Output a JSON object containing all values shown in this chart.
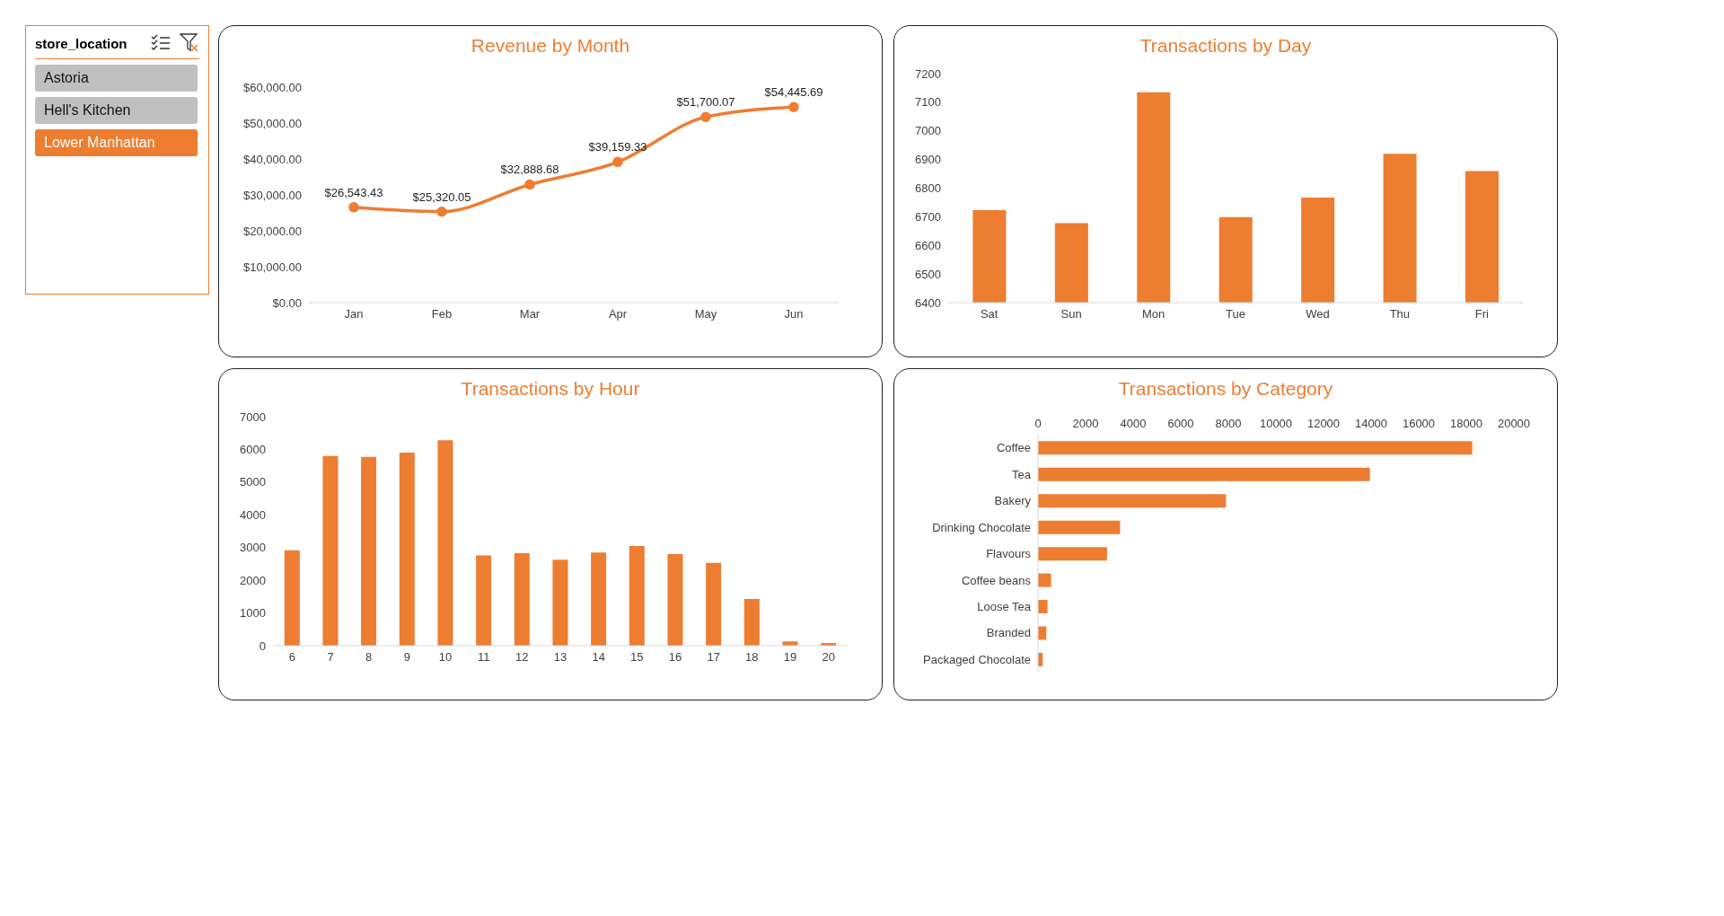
{
  "chart_data": [
    {
      "type": "other",
      "title": "store_location",
      "categories": [
        "Astoria",
        "Hell's Kitchen",
        "Lower Manhattan"
      ],
      "colors": [
        "#c0c0c0",
        "#c0c0c0",
        "#ed7d31"
      ]
    },
    {
      "type": "line",
      "title": "Revenue by Month",
      "categories": [
        "Jan",
        "Feb",
        "Mar",
        "Apr",
        "May",
        "Jun"
      ],
      "marker": "circle",
      "series": [
        {
          "color": "#ed7d31",
          "values": [
            26543.43,
            25320.05,
            32888.68,
            39159.33,
            51700.07,
            54445.69
          ],
          "value_labels": [
            "$26,543.43",
            "$25,320.05",
            "$32,888.68",
            "$39,159.33",
            "$51,700.07",
            "$54,445.69"
          ]
        }
      ],
      "ylim": [
        0,
        60000
      ],
      "yticks": [
        {
          "value": 0,
          "label": "$0.00"
        },
        {
          "value": 10000,
          "label": "$10,000.00"
        },
        {
          "value": 20000,
          "label": "$20,000.00"
        },
        {
          "value": 30000,
          "label": "$30,000.00"
        },
        {
          "value": 40000,
          "label": "$40,000.00"
        },
        {
          "value": 50000,
          "label": "$50,000.00"
        },
        {
          "value": 60000,
          "label": "$60,000.00"
        }
      ]
    },
    {
      "type": "bar",
      "title": "Transactions by Day",
      "categories": [
        "Sat",
        "Sun",
        "Mon",
        "Tue",
        "Wed",
        "Thu",
        "Fri"
      ],
      "values": [
        6723,
        6678,
        7135,
        6699,
        6767,
        6920,
        6860
      ],
      "color": "#ed7d31",
      "ylim": [
        6400,
        7200
      ],
      "yticks": [
        6400,
        6500,
        6600,
        6700,
        6800,
        6900,
        7000,
        7100,
        7200
      ]
    },
    {
      "type": "bar",
      "title": "Transactions by Hour",
      "categories": [
        "6",
        "7",
        "8",
        "9",
        "10",
        "11",
        "12",
        "13",
        "14",
        "15",
        "16",
        "17",
        "18",
        "19",
        "20"
      ],
      "values": [
        2920,
        5800,
        5770,
        5900,
        6280,
        2760,
        2830,
        2630,
        2850,
        3050,
        2800,
        2530,
        1430,
        130,
        80
      ],
      "color": "#ed7d31",
      "ylim": [
        0,
        7000
      ],
      "yticks": [
        0,
        1000,
        2000,
        3000,
        4000,
        5000,
        6000,
        7000
      ]
    },
    {
      "type": "bar",
      "orientation": "horizontal",
      "title": "Transactions by Category",
      "categories": [
        "Coffee",
        "Tea",
        "Bakery",
        "Drinking Chocolate",
        "Flavours",
        "Coffee beans",
        "Loose Tea",
        "Branded",
        "Packaged Chocolate"
      ],
      "values": [
        18250,
        13950,
        7900,
        3450,
        2900,
        550,
        400,
        350,
        200
      ],
      "color": "#ed7d31",
      "xlim": [
        0,
        20000
      ],
      "xticks": [
        0,
        2000,
        4000,
        6000,
        8000,
        10000,
        12000,
        14000,
        16000,
        18000,
        20000
      ]
    }
  ]
}
